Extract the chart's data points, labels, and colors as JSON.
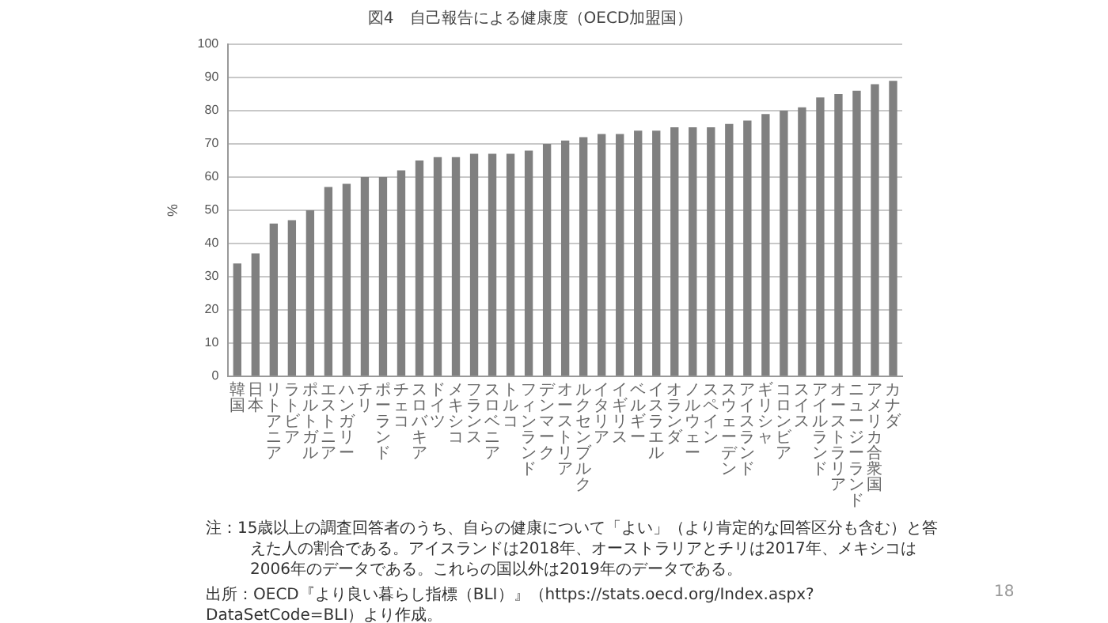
{
  "chart_data": {
    "type": "bar",
    "title": "図4　自己報告による健康度（OECD加盟国）",
    "ylabel": "%",
    "categories": [
      "韓国",
      "日本",
      "リトアニア",
      "ラトビア",
      "ポルトガル",
      "エストニア",
      "ハンガリー",
      "チリ",
      "ポーランド",
      "チェコ",
      "スロバキア",
      "ドイツ",
      "メキシコ",
      "フランス",
      "スロベニア",
      "トルコ",
      "フィンランド",
      "デンマーク",
      "オーストリア",
      "ルクセンブルク",
      "イタリア",
      "イギリス",
      "ベルギー",
      "イスラエル",
      "オランダ",
      "ノルウェー",
      "スペイン",
      "スウェーデン",
      "アイスランド",
      "ギリシャ",
      "コロンビア",
      "スイス",
      "アイルランド",
      "オーストラリア",
      "ニュージーランド",
      "アメリカ合衆国",
      "カナダ"
    ],
    "values": [
      34,
      37,
      46,
      47,
      50,
      57,
      58,
      60,
      60,
      62,
      65,
      66,
      66,
      67,
      67,
      67,
      68,
      70,
      71,
      72,
      73,
      73,
      74,
      74,
      75,
      75,
      75,
      76,
      77,
      79,
      80,
      81,
      84,
      85,
      86,
      88,
      89
    ],
    "color": "#808080",
    "ylim": [
      0,
      100
    ],
    "yticks": [
      0,
      10,
      20,
      30,
      40,
      50,
      60,
      70,
      80,
      90,
      100
    ],
    "grid": "y",
    "legend": false,
    "annotations": [
      "注：15歳以上の調査回答者のうち、自らの健康について「よい」（より肯定的な回答区分も含む）と答えた人の割合である。アイスランドは2018年、オーストラリアとチリは2017年、メキシコは2006年のデータである。これらの国以外は2019年のデータである。",
      "出所：OECD『より良い暮らし指標（BLI）』（https://stats.oecd.org/Index.aspx?DataSetCode=BLI）より作成。",
      "18"
    ]
  }
}
